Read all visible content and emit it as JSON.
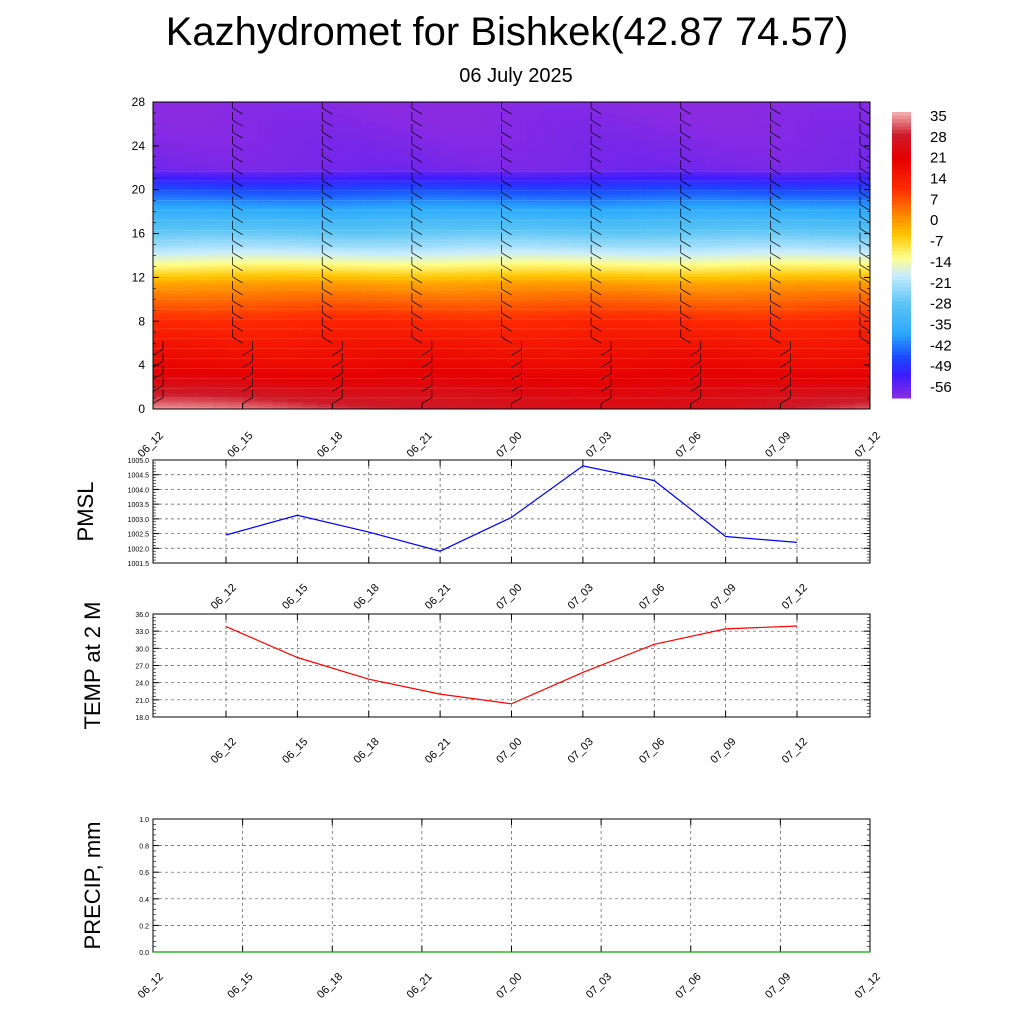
{
  "title": "Kazhydromet for Bishkek(42.87 74.57)",
  "subtitle": "06 July 2025",
  "chart_data": [
    {
      "type": "heatmap",
      "title": "Kazhydromet for Bishkek(42.87 74.57)",
      "subtitle": "06 July 2025",
      "x_ticks": [
        "06_12",
        "06_15",
        "06_18",
        "06_21",
        "07_00",
        "07_03",
        "07_06",
        "07_09",
        "07_12"
      ],
      "y_ticks": [
        0,
        4,
        8,
        12,
        16,
        20,
        24,
        28
      ],
      "ylim": [
        0,
        28
      ],
      "colorbar_labels": [
        35,
        28,
        21,
        14,
        7,
        0,
        -7,
        -14,
        -21,
        -28,
        -35,
        -42,
        -49,
        -56
      ],
      "colorbar_range": [
        -60,
        38
      ],
      "color_stops": [
        {
          "v": -60,
          "c": "#8a2be2"
        },
        {
          "v": -52,
          "c": "#3a1cff"
        },
        {
          "v": -46,
          "c": "#1a4cff"
        },
        {
          "v": -38,
          "c": "#2aa8ff"
        },
        {
          "v": -28,
          "c": "#59c4f4"
        },
        {
          "v": -18,
          "c": "#c8ecff"
        },
        {
          "v": -12,
          "c": "#ffff8c"
        },
        {
          "v": -4,
          "c": "#ffc400"
        },
        {
          "v": 4,
          "c": "#ff7a00"
        },
        {
          "v": 12,
          "c": "#ff2a00"
        },
        {
          "v": 22,
          "c": "#e60000"
        },
        {
          "v": 30,
          "c": "#cc1b2a"
        },
        {
          "v": 38,
          "c": "#f5b5b5"
        }
      ],
      "temperature_profile": [
        {
          "h": 0,
          "t": 27
        },
        {
          "h": 2,
          "t": 24
        },
        {
          "h": 4,
          "t": 20
        },
        {
          "h": 6,
          "t": 17
        },
        {
          "h": 8,
          "t": 13
        },
        {
          "h": 10,
          "t": 6
        },
        {
          "h": 11.5,
          "t": 0
        },
        {
          "h": 13,
          "t": -10
        },
        {
          "h": 13.6,
          "t": -14
        },
        {
          "h": 15,
          "t": -22
        },
        {
          "h": 17,
          "t": -31
        },
        {
          "h": 19,
          "t": -41
        },
        {
          "h": 20.5,
          "t": -49
        },
        {
          "h": 22,
          "t": -58
        },
        {
          "h": 28,
          "t": -60
        }
      ],
      "surface_warm_anomaly": {
        "t_start": 0,
        "t_end": 2.5,
        "t_return": 6.5,
        "t_final": 8,
        "max_height": 4.5,
        "max_delta": 10
      }
    },
    {
      "type": "line",
      "ylabel": "PMSL",
      "categories": [
        "06_12",
        "06_15",
        "06_18",
        "06_21",
        "07_00",
        "07_03",
        "07_06",
        "07_09",
        "07_12"
      ],
      "values": [
        1002.45,
        1003.12,
        1002.55,
        1001.9,
        1003.05,
        1004.8,
        1004.3,
        1002.4,
        1002.2
      ],
      "ylim": [
        1001.5,
        1005.0
      ],
      "y_ticks": [
        "1001.5",
        "1002.0",
        "1002.5",
        "1003.0",
        "1003.5",
        "1004.0",
        "1004.5",
        "1005.0"
      ],
      "line_color": "#0000ff",
      "grid": true
    },
    {
      "type": "line",
      "ylabel": "TEMP at 2 M",
      "categories": [
        "06_12",
        "06_15",
        "06_18",
        "06_21",
        "07_00",
        "07_03",
        "07_06",
        "07_09",
        "07_12"
      ],
      "values": [
        33.8,
        28.4,
        24.6,
        22.0,
        20.3,
        25.8,
        30.7,
        33.4,
        33.9
      ],
      "ylim": [
        18.0,
        36.0
      ],
      "y_ticks": [
        "18.0",
        "21.0",
        "24.0",
        "27.0",
        "30.0",
        "33.0",
        "36.0"
      ],
      "line_color": "#ff0000",
      "grid": true
    },
    {
      "type": "line",
      "ylabel": "PRECIP, mm",
      "categories": [
        "06_12",
        "06_15",
        "06_18",
        "06_21",
        "07_00",
        "07_03",
        "07_06",
        "07_09",
        "07_12"
      ],
      "values": [
        0,
        0,
        0,
        0,
        0,
        0,
        0,
        0,
        0
      ],
      "ylim": [
        0.0,
        1.0
      ],
      "y_ticks": [
        "0.0",
        "0.2",
        "0.4",
        "0.6",
        "0.8",
        "1.0"
      ],
      "line_color": "#00aa00",
      "grid": true
    }
  ]
}
